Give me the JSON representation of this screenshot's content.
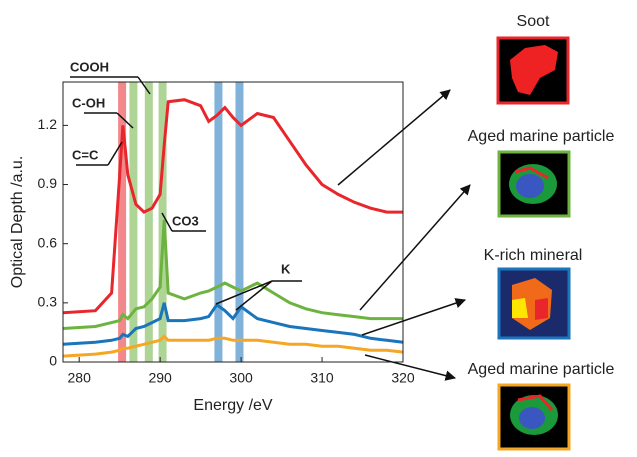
{
  "chart_data": {
    "type": "line",
    "xlabel": "Energy /eV",
    "ylabel": "Optical Depth /a.u.",
    "xlim": [
      278,
      320
    ],
    "ylim": [
      0,
      1.42
    ],
    "xticks": [
      280,
      290,
      300,
      310,
      320
    ],
    "yticks": [
      0,
      0.3,
      0.6,
      0.9,
      1.2
    ],
    "x": [
      278,
      282,
      284,
      285,
      285.4,
      286,
      287,
      288,
      289,
      290,
      290.5,
      291,
      293,
      295,
      296,
      297,
      298,
      299,
      300,
      302,
      304,
      306,
      308,
      310,
      312,
      314,
      316,
      318,
      320
    ],
    "series": [
      {
        "name": "Soot",
        "color": "#e8262b",
        "values": [
          0.25,
          0.26,
          0.35,
          0.95,
          1.2,
          0.95,
          0.8,
          0.76,
          0.78,
          0.85,
          1.1,
          1.32,
          1.33,
          1.3,
          1.22,
          1.25,
          1.29,
          1.24,
          1.2,
          1.26,
          1.24,
          1.12,
          1.0,
          0.9,
          0.85,
          0.81,
          0.78,
          0.76,
          0.76
        ]
      },
      {
        "name": "Aged marine particle",
        "color": "#6db33f",
        "values": [
          0.17,
          0.18,
          0.2,
          0.21,
          0.24,
          0.22,
          0.27,
          0.28,
          0.32,
          0.38,
          0.72,
          0.35,
          0.32,
          0.35,
          0.36,
          0.38,
          0.4,
          0.38,
          0.36,
          0.4,
          0.35,
          0.3,
          0.27,
          0.25,
          0.24,
          0.23,
          0.22,
          0.22,
          0.22
        ]
      },
      {
        "name": "K-rich mineral",
        "color": "#1a75bb",
        "values": [
          0.09,
          0.1,
          0.11,
          0.12,
          0.14,
          0.13,
          0.17,
          0.18,
          0.2,
          0.22,
          0.3,
          0.21,
          0.21,
          0.22,
          0.23,
          0.29,
          0.26,
          0.22,
          0.28,
          0.22,
          0.2,
          0.18,
          0.17,
          0.16,
          0.15,
          0.14,
          0.12,
          0.11,
          0.1
        ]
      },
      {
        "name": "Aged marine particle",
        "color": "#f5a623",
        "values": [
          0.03,
          0.04,
          0.05,
          0.06,
          0.07,
          0.07,
          0.08,
          0.09,
          0.1,
          0.11,
          0.13,
          0.11,
          0.11,
          0.11,
          0.11,
          0.12,
          0.12,
          0.11,
          0.11,
          0.11,
          0.1,
          0.09,
          0.09,
          0.08,
          0.08,
          0.07,
          0.06,
          0.06,
          0.05
        ]
      }
    ],
    "bands": [
      {
        "x": 285.3,
        "color": "#e8262b"
      },
      {
        "x": 286.7,
        "color": "#6db33f"
      },
      {
        "x": 288.6,
        "color": "#6db33f"
      },
      {
        "x": 290.3,
        "color": "#6db33f"
      },
      {
        "x": 297.2,
        "color": "#1a75bb"
      },
      {
        "x": 299.8,
        "color": "#1a75bb"
      }
    ],
    "annotations": [
      "COOH",
      "C-OH",
      "C=C",
      "CO3",
      "K"
    ]
  }
}
